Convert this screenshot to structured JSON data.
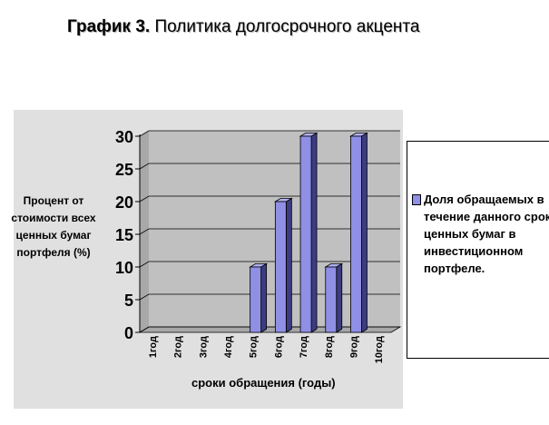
{
  "page": {
    "title_lead": "График 3.",
    "title_rest": " Политика долгосрочного акцента"
  },
  "chart_data": {
    "type": "bar",
    "categories": [
      "1год",
      "2год",
      "3год",
      "4год",
      "5год",
      "6год",
      "7год",
      "8год",
      "9год",
      "10год"
    ],
    "series": [
      {
        "name": "Доля обращаемых в течение данного срока ценных бумаг в инвестиционном портфеле.",
        "values": [
          0,
          0,
          0,
          0,
          10,
          20,
          30,
          10,
          30,
          0
        ]
      }
    ],
    "xlabel": "сроки обращения (годы)",
    "ylabel": "Процент от стоимости всех ценных бумаг портфеля (%)",
    "ylim": [
      0,
      30
    ],
    "yticks": [
      0,
      5,
      10,
      15,
      20,
      25,
      30
    ],
    "grid": true,
    "legend_position": "right",
    "style": "3d-column",
    "colors": {
      "bar_front": "#8f8fe6",
      "bar_side": "#3c3c82",
      "bar_top": "#b2b2f0",
      "plot_wall": "#c0c0c0",
      "plot_floor": "#a8a8a8",
      "frame_bg": "#e0e0e0"
    }
  }
}
